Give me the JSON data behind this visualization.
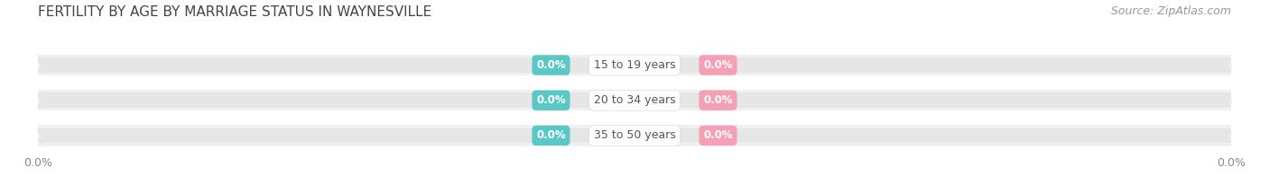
{
  "title": "FERTILITY BY AGE BY MARRIAGE STATUS IN WAYNESVILLE",
  "source_text": "Source: ZipAtlas.com",
  "age_groups": [
    "15 to 19 years",
    "20 to 34 years",
    "35 to 50 years"
  ],
  "married_values": [
    0.0,
    0.0,
    0.0
  ],
  "unmarried_values": [
    0.0,
    0.0,
    0.0
  ],
  "married_color": "#5bc8c8",
  "unmarried_color": "#f5a0b5",
  "bar_bg_color": "#e6e6e6",
  "bar_bg_color2": "#f0f0f0",
  "title_fontsize": 11,
  "source_fontsize": 9,
  "label_fontsize": 9,
  "value_fontsize": 8.5,
  "tick_fontsize": 9,
  "legend_fontsize": 9,
  "bg_color": "#ffffff",
  "fig_width": 14.06,
  "fig_height": 1.96,
  "dpi": 100
}
